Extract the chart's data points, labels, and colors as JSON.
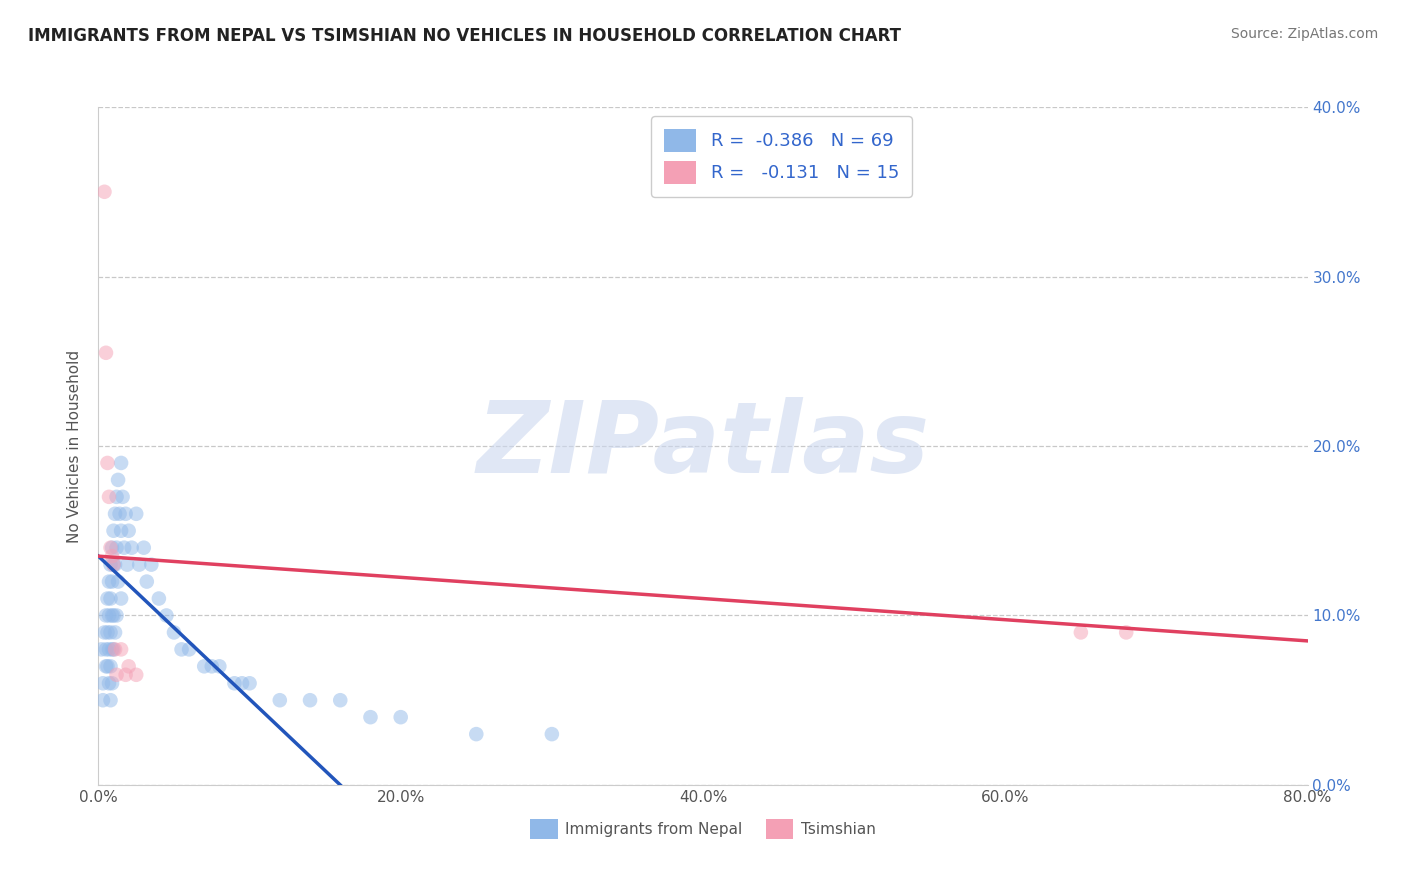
{
  "title": "IMMIGRANTS FROM NEPAL VS TSIMSHIAN NO VEHICLES IN HOUSEHOLD CORRELATION CHART",
  "source_text": "Source: ZipAtlas.com",
  "ylabel": "No Vehicles in Household",
  "xlim": [
    0.0,
    0.8
  ],
  "ylim": [
    0.0,
    0.4
  ],
  "xtick_labels": [
    "0.0%",
    "20.0%",
    "40.0%",
    "60.0%",
    "80.0%"
  ],
  "xtick_values": [
    0.0,
    0.2,
    0.4,
    0.6,
    0.8
  ],
  "ytick_labels_right": [
    "0.0%",
    "10.0%",
    "20.0%",
    "30.0%",
    "40.0%"
  ],
  "ytick_values": [
    0.0,
    0.1,
    0.2,
    0.3,
    0.4
  ],
  "legend_labels": [
    "Immigrants from Nepal",
    "Tsimshian"
  ],
  "legend_R": [
    -0.386,
    -0.131
  ],
  "legend_N": [
    69,
    15
  ],
  "blue_color": "#90b8e8",
  "pink_color": "#f4a0b5",
  "blue_line_color": "#2255bb",
  "pink_line_color": "#e04060",
  "watermark_text": "ZIPatlas",
  "watermark_color": "#ccd8ef",
  "title_fontsize": 12,
  "scatter_alpha": 0.5,
  "scatter_size": 110,
  "blue_scatter_x": [
    0.002,
    0.003,
    0.003,
    0.004,
    0.005,
    0.005,
    0.005,
    0.006,
    0.006,
    0.006,
    0.007,
    0.007,
    0.007,
    0.007,
    0.008,
    0.008,
    0.008,
    0.008,
    0.008,
    0.009,
    0.009,
    0.009,
    0.009,
    0.009,
    0.01,
    0.01,
    0.01,
    0.01,
    0.011,
    0.011,
    0.011,
    0.012,
    0.012,
    0.012,
    0.013,
    0.013,
    0.014,
    0.015,
    0.015,
    0.015,
    0.016,
    0.017,
    0.018,
    0.019,
    0.02,
    0.022,
    0.025,
    0.027,
    0.03,
    0.032,
    0.035,
    0.04,
    0.045,
    0.05,
    0.055,
    0.06,
    0.07,
    0.075,
    0.08,
    0.09,
    0.095,
    0.1,
    0.12,
    0.14,
    0.16,
    0.18,
    0.2,
    0.25,
    0.3
  ],
  "blue_scatter_y": [
    0.08,
    0.06,
    0.05,
    0.09,
    0.1,
    0.08,
    0.07,
    0.11,
    0.09,
    0.07,
    0.12,
    0.1,
    0.08,
    0.06,
    0.13,
    0.11,
    0.09,
    0.07,
    0.05,
    0.14,
    0.12,
    0.1,
    0.08,
    0.06,
    0.15,
    0.13,
    0.1,
    0.08,
    0.16,
    0.13,
    0.09,
    0.17,
    0.14,
    0.1,
    0.18,
    0.12,
    0.16,
    0.19,
    0.15,
    0.11,
    0.17,
    0.14,
    0.16,
    0.13,
    0.15,
    0.14,
    0.16,
    0.13,
    0.14,
    0.12,
    0.13,
    0.11,
    0.1,
    0.09,
    0.08,
    0.08,
    0.07,
    0.07,
    0.07,
    0.06,
    0.06,
    0.06,
    0.05,
    0.05,
    0.05,
    0.04,
    0.04,
    0.03,
    0.03
  ],
  "pink_scatter_x": [
    0.004,
    0.005,
    0.006,
    0.007,
    0.008,
    0.009,
    0.01,
    0.011,
    0.012,
    0.015,
    0.018,
    0.02,
    0.025,
    0.65,
    0.68
  ],
  "pink_scatter_y": [
    0.35,
    0.255,
    0.19,
    0.17,
    0.14,
    0.135,
    0.13,
    0.08,
    0.065,
    0.08,
    0.065,
    0.07,
    0.065,
    0.09,
    0.09
  ],
  "blue_trendline_x": [
    0.0,
    0.16
  ],
  "blue_trendline_y": [
    0.135,
    0.0
  ],
  "pink_trendline_x": [
    0.0,
    0.8
  ],
  "pink_trendline_y": [
    0.135,
    0.085
  ]
}
